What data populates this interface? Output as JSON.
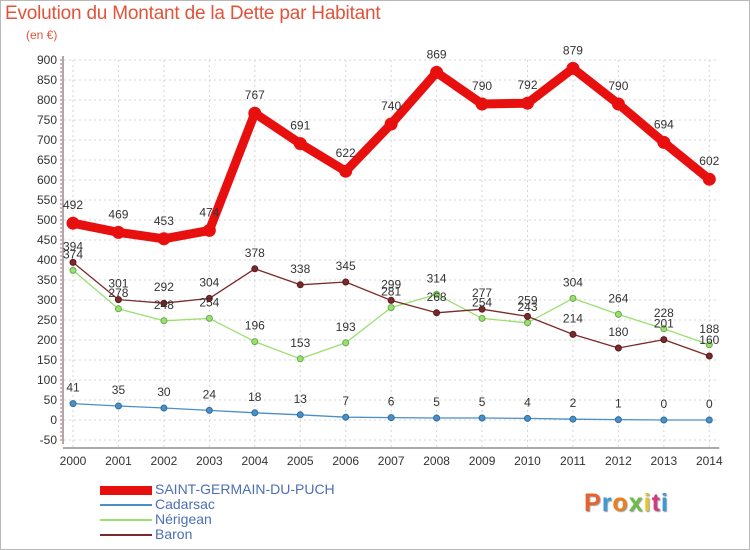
{
  "title": "Evolution du Montant de la Dette par Habitant",
  "subtitle": "(en €)",
  "logo": {
    "text": "Proxiti",
    "colors": [
      "#e8622a",
      "#3a9ad9",
      "#ef7d1a",
      "#6cbd45",
      "#e3c72a",
      "#d23b7e",
      "#3a9ad9"
    ]
  },
  "chart_data": {
    "type": "line",
    "x": [
      2000,
      2001,
      2002,
      2003,
      2004,
      2005,
      2006,
      2007,
      2008,
      2009,
      2010,
      2011,
      2012,
      2013,
      2014
    ],
    "ylim": [
      -50,
      900
    ],
    "yticks": [
      -50,
      0,
      50,
      100,
      150,
      200,
      250,
      300,
      350,
      400,
      450,
      500,
      550,
      600,
      650,
      700,
      750,
      800,
      850,
      900
    ],
    "legend_position": "bottom-left",
    "series": [
      {
        "name": "SAINT-GERMAIN-DU-PUCH",
        "color": "#e8100f",
        "values": [
          492,
          469,
          453,
          474,
          767,
          691,
          622,
          740,
          869,
          790,
          792,
          879,
          790,
          694,
          602
        ]
      },
      {
        "name": "Cadarsac",
        "color": "#4a8fc7",
        "values": [
          41,
          35,
          30,
          24,
          18,
          13,
          7,
          6,
          5,
          5,
          4,
          2,
          1,
          0,
          0
        ]
      },
      {
        "name": "Nérigean",
        "color": "#99e06e",
        "values": [
          374,
          278,
          248,
          254,
          196,
          153,
          193,
          281,
          314,
          254,
          243,
          304,
          264,
          228,
          188
        ]
      },
      {
        "name": "Baron",
        "color": "#7a2a2a",
        "values": [
          394,
          301,
          292,
          304,
          378,
          338,
          345,
          299,
          268,
          277,
          259,
          214,
          180,
          201,
          160
        ]
      }
    ]
  }
}
